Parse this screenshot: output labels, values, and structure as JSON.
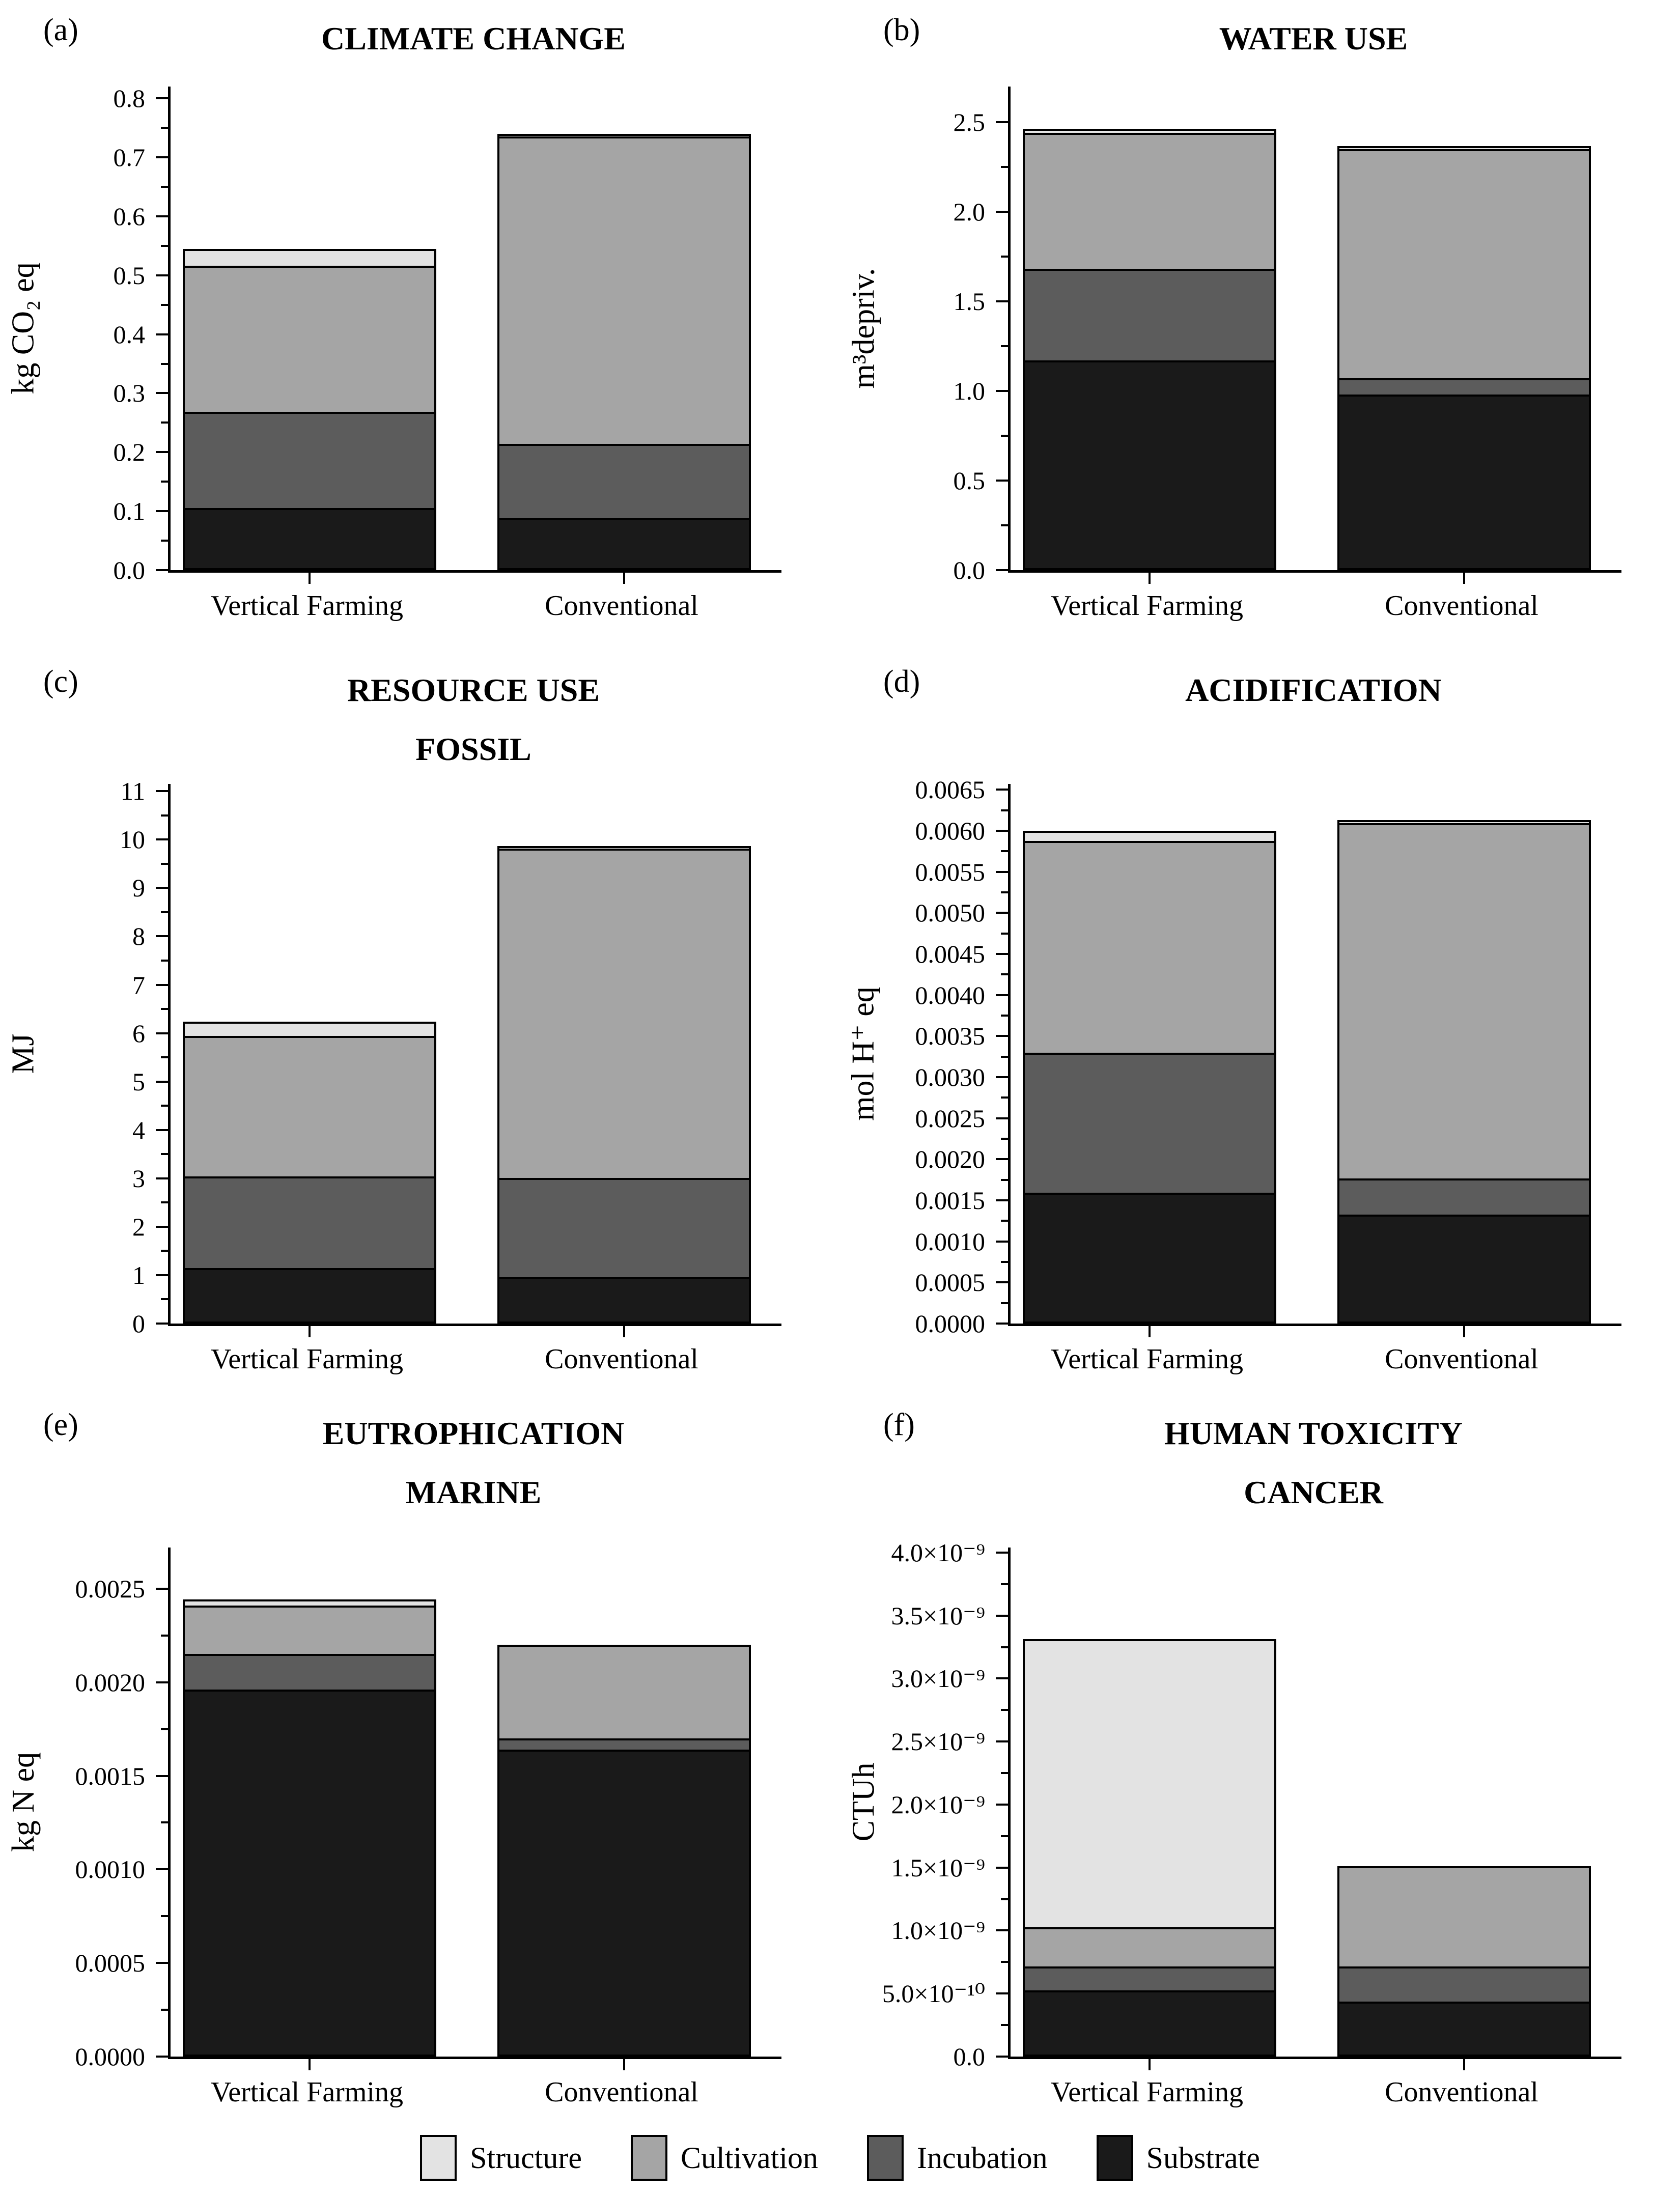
{
  "figure": {
    "background": "#ffffff"
  },
  "colors": {
    "Structure": "#e3e3e3",
    "Cultivation": "#a5a5a5",
    "Incubation": "#5c5c5c",
    "Substrate": "#1a1a1a"
  },
  "legend": {
    "items": [
      {
        "label": "Structure",
        "color": "#e3e3e3"
      },
      {
        "label": "Cultivation",
        "color": "#a5a5a5"
      },
      {
        "label": "Incubation",
        "color": "#5c5c5c"
      },
      {
        "label": "Substrate",
        "color": "#1a1a1a"
      }
    ]
  },
  "chart_data": [
    {
      "type": "bar",
      "stacked": true,
      "stack_order": "bottom-to-top",
      "panel": "(a)",
      "title_lines": [
        "CLIMATE CHANGE"
      ],
      "ylabel": "kg CO₂ eq",
      "ylim": [
        0,
        0.82
      ],
      "grid": false,
      "categories": [
        "Vertical Farming",
        "Conventional"
      ],
      "ytick_values": [
        0.0,
        0.1,
        0.2,
        0.3,
        0.4,
        0.5,
        0.6,
        0.7,
        0.8
      ],
      "ytick_labels": [
        "0.0",
        "0.1",
        "0.2",
        "0.3",
        "0.4",
        "0.5",
        "0.6",
        "0.7",
        "0.8"
      ],
      "series": [
        {
          "name": "Substrate",
          "values": [
            0.102,
            0.085
          ]
        },
        {
          "name": "Incubation",
          "values": [
            0.163,
            0.126
          ]
        },
        {
          "name": "Cultivation",
          "values": [
            0.248,
            0.521
          ]
        },
        {
          "name": "Structure",
          "values": [
            0.025,
            0.001
          ]
        }
      ]
    },
    {
      "type": "bar",
      "stacked": true,
      "stack_order": "bottom-to-top",
      "panel": "(b)",
      "title_lines": [
        "WATER USE"
      ],
      "ylabel": "m³depriv.",
      "ylim": [
        0,
        2.7
      ],
      "grid": false,
      "categories": [
        "Vertical Farming",
        "Conventional"
      ],
      "ytick_values": [
        0.0,
        0.5,
        1.0,
        1.5,
        2.0,
        2.5
      ],
      "ytick_labels": [
        "0.0",
        "0.5",
        "1.0",
        "1.5",
        "2.0",
        "2.5"
      ],
      "series": [
        {
          "name": "Substrate",
          "values": [
            1.16,
            0.97
          ]
        },
        {
          "name": "Incubation",
          "values": [
            0.51,
            0.09
          ]
        },
        {
          "name": "Cultivation",
          "values": [
            0.76,
            1.28
          ]
        },
        {
          "name": "Structure",
          "values": [
            0.01,
            0.005
          ]
        }
      ]
    },
    {
      "type": "bar",
      "stacked": true,
      "stack_order": "bottom-to-top",
      "panel": "(c)",
      "title_lines": [
        "RESOURCE USE",
        "FOSSIL"
      ],
      "ylabel": "MJ",
      "ylim": [
        0,
        11.15
      ],
      "grid": false,
      "categories": [
        "Vertical Farming",
        "Conventional"
      ],
      "ytick_values": [
        0,
        1,
        2,
        3,
        4,
        5,
        6,
        7,
        8,
        9,
        10,
        11
      ],
      "ytick_labels": [
        "0",
        "1",
        "2",
        "3",
        "4",
        "5",
        "6",
        "7",
        "8",
        "9",
        "10",
        "11"
      ],
      "series": [
        {
          "name": "Substrate",
          "values": [
            1.1,
            0.92
          ]
        },
        {
          "name": "Incubation",
          "values": [
            1.9,
            2.05
          ]
        },
        {
          "name": "Cultivation",
          "values": [
            2.9,
            6.8
          ]
        },
        {
          "name": "Structure",
          "values": [
            0.25,
            0.01
          ]
        }
      ]
    },
    {
      "type": "bar",
      "stacked": true,
      "stack_order": "bottom-to-top",
      "panel": "(d)",
      "title_lines": [
        "ACIDIFICATION"
      ],
      "ylabel": "mol H⁺ eq",
      "ylim": [
        0,
        0.00657
      ],
      "grid": false,
      "categories": [
        "Vertical Farming",
        "Conventional"
      ],
      "ytick_values": [
        0.0,
        0.0005,
        0.001,
        0.0015,
        0.002,
        0.0025,
        0.003,
        0.0035,
        0.004,
        0.0045,
        0.005,
        0.0055,
        0.006,
        0.0065
      ],
      "ytick_labels": [
        "0.0000",
        "0.0005",
        "0.0010",
        "0.0015",
        "0.0020",
        "0.0025",
        "0.0030",
        "0.0035",
        "0.0040",
        "0.0045",
        "0.0050",
        "0.0055",
        "0.0060",
        "0.0065"
      ],
      "series": [
        {
          "name": "Substrate",
          "values": [
            0.00157,
            0.0013
          ]
        },
        {
          "name": "Incubation",
          "values": [
            0.0017,
            0.00044
          ]
        },
        {
          "name": "Cultivation",
          "values": [
            0.00258,
            0.00433
          ]
        },
        {
          "name": "Structure",
          "values": [
            0.0001,
            1e-05
          ]
        }
      ]
    },
    {
      "type": "bar",
      "stacked": true,
      "stack_order": "bottom-to-top",
      "panel": "(e)",
      "title_lines": [
        "EUTROPHICATION",
        "MARINE"
      ],
      "ylabel": "kg N eq",
      "ylim": [
        0,
        0.00272
      ],
      "grid": false,
      "categories": [
        "Vertical Farming",
        "Conventional"
      ],
      "ytick_values": [
        0.0,
        0.0005,
        0.001,
        0.0015,
        0.002,
        0.0025
      ],
      "ytick_labels": [
        "0.0000",
        "0.0005",
        "0.0010",
        "0.0015",
        "0.0020",
        "0.0025"
      ],
      "series": [
        {
          "name": "Substrate",
          "values": [
            0.00195,
            0.00163
          ]
        },
        {
          "name": "Incubation",
          "values": [
            0.00019,
            6e-05
          ]
        },
        {
          "name": "Cultivation",
          "values": [
            0.00026,
            0.00049
          ]
        },
        {
          "name": "Structure",
          "values": [
            2e-05,
            0
          ]
        }
      ]
    },
    {
      "type": "bar",
      "stacked": true,
      "stack_order": "bottom-to-top",
      "panel": "(f)",
      "title_lines": [
        "HUMAN TOXICITY",
        "CANCER"
      ],
      "ylabel": "CTUh",
      "ylim": [
        0,
        4.04e-09
      ],
      "grid": false,
      "categories": [
        "Vertical Farming",
        "Conventional"
      ],
      "ytick_values": [
        0,
        5e-10,
        1e-09,
        1.5e-09,
        2e-09,
        2.5e-09,
        3e-09,
        3.5e-09,
        4e-09
      ],
      "ytick_labels": [
        "0.0",
        "5.0×10⁻¹⁰",
        "1.0×10⁻⁹",
        "1.5×10⁻⁹",
        "2.0×10⁻⁹",
        "2.5×10⁻⁹",
        "3.0×10⁻⁹",
        "3.5×10⁻⁹",
        "4.0×10⁻⁹"
      ],
      "series": [
        {
          "name": "Substrate",
          "values": [
            5.1e-10,
            4.2e-10
          ]
        },
        {
          "name": "Incubation",
          "values": [
            1.9e-10,
            2.8e-10
          ]
        },
        {
          "name": "Cultivation",
          "values": [
            3.1e-10,
            7.8e-10
          ]
        },
        {
          "name": "Structure",
          "values": [
            2.27e-09,
            0
          ]
        }
      ]
    }
  ]
}
